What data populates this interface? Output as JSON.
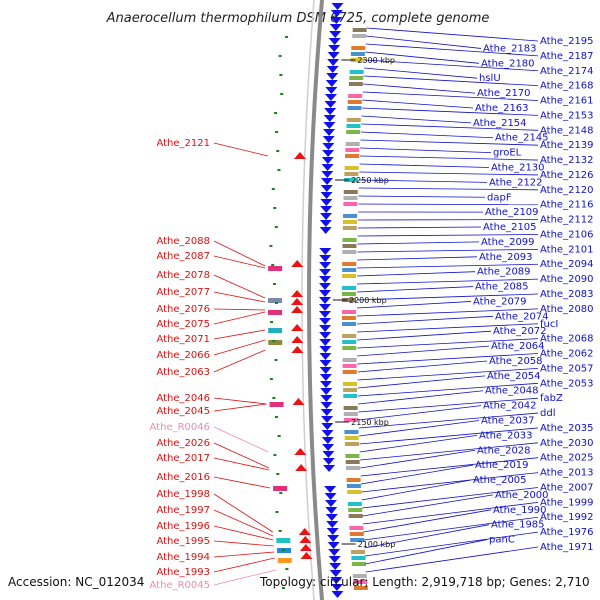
{
  "title": "Anaerocellum thermophilum DSM 6725, complete genome",
  "footer": {
    "accession": "Accession: NC_012034",
    "topology": "Topology: circular; Length: 2,919,718 bp; Genes: 2,710"
  },
  "colors": {
    "right_label": "#1010cc",
    "left_label": "#dd1111",
    "left_label_pink": "#f08ab0",
    "forward_strand": "#1010ee",
    "reverse_strand": "#ee1111",
    "ring": "#888888",
    "gc_mark": "#118811"
  },
  "scale_ticks": [
    "2300 kbp",
    "2250 kbp",
    "2200 kbp",
    "2150 kbp",
    "2100 kbp"
  ],
  "right_labels": [
    "Athe_2195",
    "Athe_2183",
    "Athe_2187",
    "Athe_2180",
    "Athe_2174",
    "hslU",
    "Athe_2168",
    "Athe_2170",
    "Athe_2161",
    "Athe_2163",
    "Athe_2153",
    "Athe_2154",
    "Athe_2148",
    "Athe_2145",
    "Athe_2139",
    "groEL",
    "Athe_2132",
    "Athe_2130",
    "Athe_2126",
    "Athe_2122",
    "Athe_2120",
    "dapF",
    "Athe_2116",
    "Athe_2109",
    "Athe_2112",
    "Athe_2105",
    "Athe_2106",
    "Athe_2099",
    "Athe_2101",
    "Athe_2093",
    "Athe_2094",
    "Athe_2089",
    "Athe_2090",
    "Athe_2085",
    "Athe_2083",
    "Athe_2079",
    "Athe_2080",
    "Athe_2074",
    "fucI",
    "Athe_2072",
    "Athe_2068",
    "Athe_2064",
    "Athe_2062",
    "Athe_2058",
    "Athe_2057",
    "Athe_2054",
    "Athe_2053",
    "Athe_2048",
    "fabZ",
    "Athe_2042",
    "ddl",
    "Athe_2037",
    "Athe_2035",
    "Athe_2033",
    "Athe_2030",
    "Athe_2028",
    "Athe_2025",
    "Athe_2019",
    "Athe_2013",
    "Athe_2005",
    "Athe_2007",
    "Athe_2000",
    "Athe_1999",
    "Athe_1990",
    "Athe_1992",
    "Athe_1985",
    "Athe_1976",
    "panC",
    "Athe_1971"
  ],
  "left_labels": [
    "Athe_2121",
    "Athe_2088",
    "Athe_2087",
    "Athe_2078",
    "Athe_2077",
    "Athe_2076",
    "Athe_2075",
    "Athe_2071",
    "Athe_2066",
    "Athe_2063",
    "Athe_2046",
    "Athe_2045",
    "Athe_R0046",
    "Athe_2026",
    "Athe_2017",
    "Athe_2016",
    "Athe_1998",
    "Athe_1997",
    "Athe_1996",
    "Athe_1995",
    "Athe_1994",
    "Athe_1993",
    "Athe_R0045"
  ]
}
